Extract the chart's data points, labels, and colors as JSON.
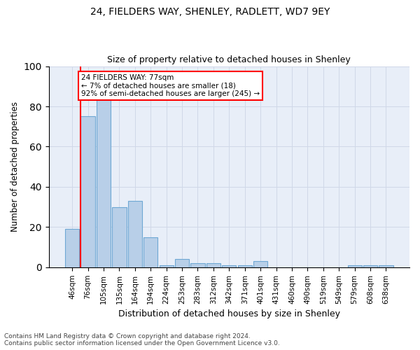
{
  "title1": "24, FIELDERS WAY, SHENLEY, RADLETT, WD7 9EY",
  "title2": "Size of property relative to detached houses in Shenley",
  "xlabel": "Distribution of detached houses by size in Shenley",
  "ylabel": "Number of detached properties",
  "footnote1": "Contains HM Land Registry data © Crown copyright and database right 2024.",
  "footnote2": "Contains public sector information licensed under the Open Government Licence v3.0.",
  "bin_labels": [
    "46sqm",
    "76sqm",
    "105sqm",
    "135sqm",
    "164sqm",
    "194sqm",
    "224sqm",
    "253sqm",
    "283sqm",
    "312sqm",
    "342sqm",
    "371sqm",
    "401sqm",
    "431sqm",
    "460sqm",
    "490sqm",
    "519sqm",
    "549sqm",
    "579sqm",
    "608sqm",
    "638sqm"
  ],
  "bar_values": [
    19,
    75,
    84,
    30,
    33,
    15,
    1,
    4,
    2,
    2,
    1,
    1,
    3,
    0,
    0,
    0,
    0,
    0,
    1,
    1,
    1
  ],
  "bar_color": "#b8cfe8",
  "bar_edge_color": "#6fa8d4",
  "grid_color": "#d0d8e8",
  "bg_color": "#e8eef8",
  "annotation_text": "24 FIELDERS WAY: 77sqm\n← 7% of detached houses are smaller (18)\n92% of semi-detached houses are larger (245) →",
  "annotation_box_color": "white",
  "annotation_box_edge": "red",
  "red_line_color": "red",
  "ylim": [
    0,
    100
  ],
  "yticks": [
    0,
    20,
    40,
    60,
    80,
    100
  ]
}
